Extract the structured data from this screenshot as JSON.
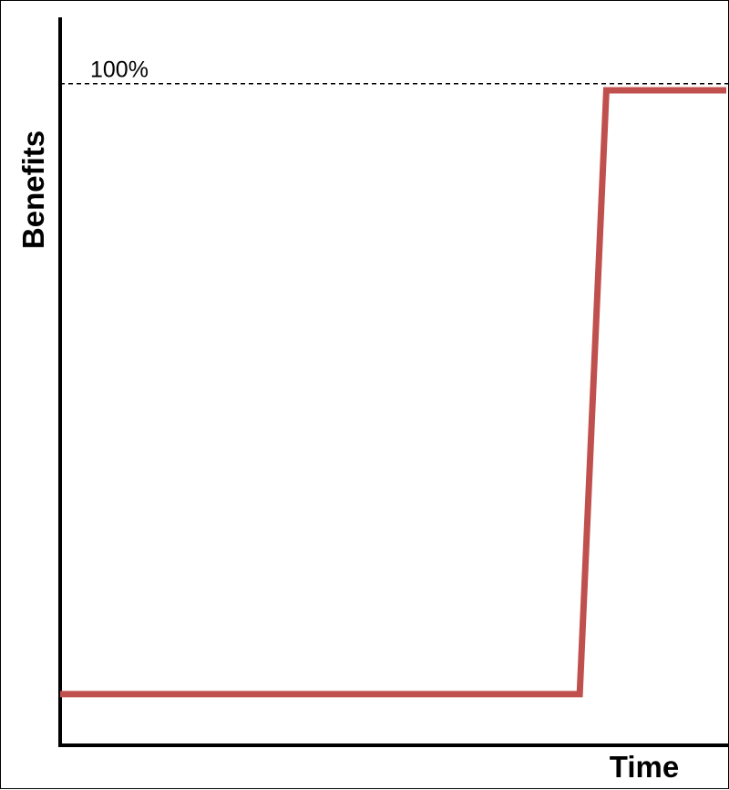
{
  "chart_data": {
    "type": "line",
    "title": "",
    "xlabel": "Time",
    "ylabel": "Benefits",
    "x_ticks_shown": false,
    "y_ticks_shown": false,
    "grid": false,
    "legend": "none",
    "reference_line": {
      "label": "100%",
      "value": 100,
      "style": "dashed"
    },
    "ylim": [
      0,
      110
    ],
    "xlim": [
      0,
      100
    ],
    "series": [
      {
        "color": "#c0504d",
        "points": [
          {
            "x": 0,
            "y": 8
          },
          {
            "x": 78,
            "y": 8
          },
          {
            "x": 82,
            "y": 99
          },
          {
            "x": 100,
            "y": 99
          }
        ]
      }
    ]
  }
}
